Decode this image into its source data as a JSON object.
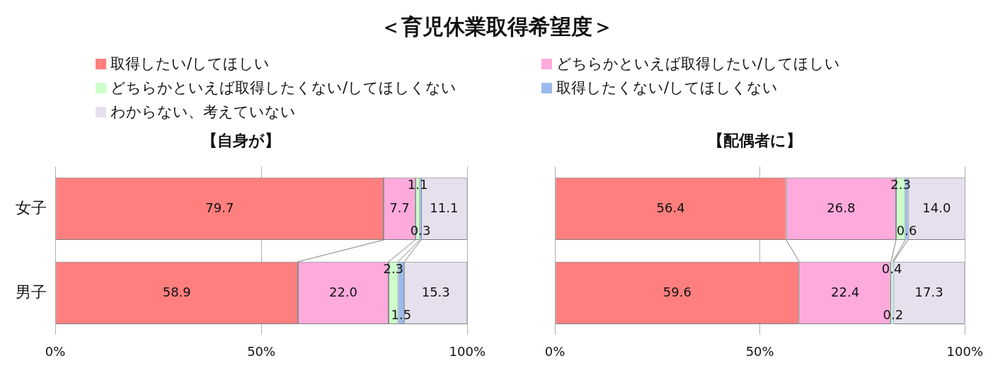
{
  "chart_data": [
    {
      "type": "bar",
      "title": "＜育児休業取得希望度＞",
      "subtitle": "【自身が】",
      "orientation": "horizontal",
      "stacked": true,
      "legend": "top",
      "grid": "x",
      "categories": [
        "女子",
        "男子"
      ],
      "series": [
        {
          "name": "取得したい/してほしい",
          "color": "#ff7f7f",
          "values": [
            79.7,
            58.9
          ],
          "value_labels": [
            "79.7",
            "58.9"
          ]
        },
        {
          "name": "どちらかといえば取得したい/してほしい",
          "color": "#ffaadd",
          "values": [
            7.7,
            22.0
          ],
          "value_labels": [
            "7.7",
            "22.0"
          ]
        },
        {
          "name": "どちらかといえば取得したくない/してほしくない",
          "color": "#ccffcc",
          "values": [
            1.1,
            2.3
          ],
          "value_labels": [
            "1.1",
            "2.3"
          ]
        },
        {
          "name": "取得したくない/してほしくない",
          "color": "#99bbee",
          "values": [
            0.3,
            1.5
          ],
          "value_labels": [
            "0.3",
            "1.5"
          ]
        },
        {
          "name": "わからない、考えていない",
          "color": "#e6e0ee",
          "values": [
            11.1,
            15.3
          ],
          "value_labels": [
            "11.1",
            "15.3"
          ]
        }
      ],
      "xlim": [
        0,
        100
      ],
      "xticks": [
        {
          "value": 0,
          "label": "0%"
        },
        {
          "value": 50,
          "label": "50%"
        },
        {
          "value": 100,
          "label": "100%"
        }
      ]
    },
    {
      "type": "bar",
      "title": "【配偶者に】",
      "orientation": "horizontal",
      "stacked": true,
      "grid": "x",
      "categories": [
        null,
        null
      ],
      "series": [
        {
          "color": "#ff7f7f",
          "values": [
            56.4,
            59.6
          ],
          "value_labels": [
            "56.4",
            "59.6"
          ]
        },
        {
          "color": "#ffaadd",
          "values": [
            26.8,
            22.4
          ],
          "value_labels": [
            "26.8",
            "22.4"
          ]
        },
        {
          "color": "#ccffcc",
          "values": [
            2.3,
            0.4
          ],
          "value_labels": [
            "2.3",
            "0.4"
          ]
        },
        {
          "color": "#99bbee",
          "values": [
            0.6,
            0.2
          ],
          "value_labels": [
            "0.6",
            "0.2"
          ]
        },
        {
          "color": "#e6e0ee",
          "values": [
            14.0,
            17.3
          ],
          "value_labels": [
            "14.0",
            "17.3"
          ]
        }
      ],
      "xlim": [
        0,
        100
      ],
      "xticks": [
        {
          "value": 0,
          "label": "0%"
        },
        {
          "value": 50,
          "label": "50%"
        },
        {
          "value": 100,
          "label": "100%"
        }
      ]
    }
  ]
}
